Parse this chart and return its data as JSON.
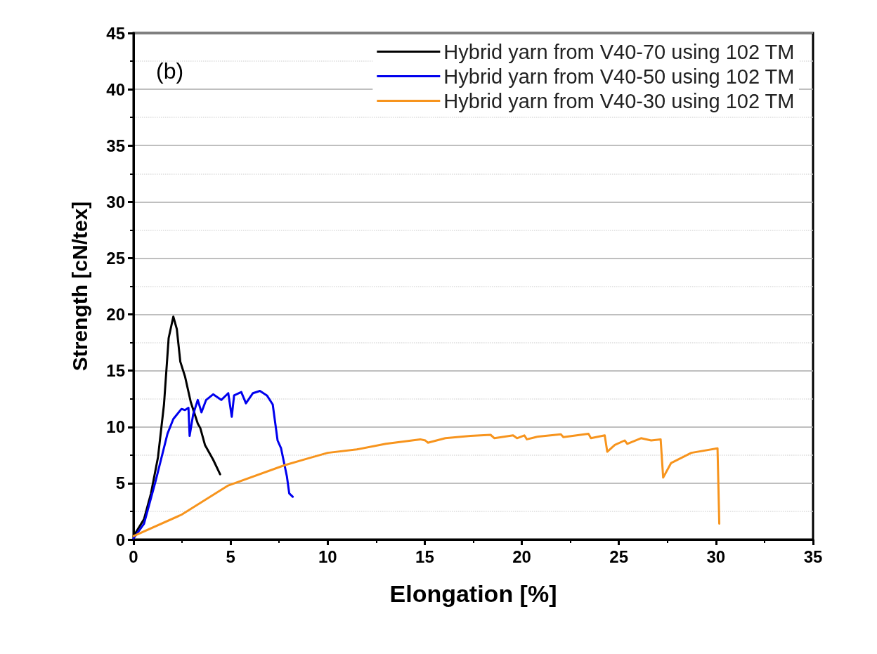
{
  "chart_data": {
    "type": "line",
    "xlabel": "Elongation [%]",
    "ylabel": "Strength [cN/tex]",
    "annotations": [
      "(b)"
    ],
    "xlim": [
      0,
      35
    ],
    "xticks": [
      0,
      5,
      10,
      15,
      20,
      25,
      30,
      35
    ],
    "ylim": [
      0,
      45
    ],
    "yticks": [
      0,
      5,
      10,
      15,
      20,
      25,
      30,
      35,
      40,
      45
    ],
    "grid": "y",
    "legend": "top right",
    "marker": "none",
    "line_style": "solid",
    "series": [
      {
        "name": "Hybrid yarn from V40-70 using 102 TM",
        "color": "#000000",
        "x": [
          0,
          0.54,
          0.9,
          1.26,
          1.57,
          1.81,
          2.05,
          2.23,
          2.41,
          2.65,
          2.95,
          3.31,
          3.44,
          3.68,
          4.1,
          4.46
        ],
        "values": [
          0.3,
          1.8,
          4.1,
          7.3,
          12.0,
          17.9,
          19.8,
          18.7,
          15.8,
          14.5,
          12.2,
          10.3,
          9.9,
          8.4,
          7.1,
          5.8
        ]
      },
      {
        "name": "Hybrid yarn from V40-50 using 102 TM",
        "color": "#0000ee",
        "x": [
          0,
          0.54,
          1.14,
          1.75,
          2.05,
          2.47,
          2.65,
          2.83,
          2.89,
          3.07,
          3.31,
          3.5,
          3.74,
          4.1,
          4.52,
          4.88,
          5.06,
          5.18,
          5.55,
          5.79,
          6.15,
          6.51,
          6.87,
          7.17,
          7.42,
          7.6,
          7.9,
          8.02,
          8.2
        ],
        "values": [
          0.1,
          1.4,
          5.2,
          9.4,
          10.7,
          11.6,
          11.5,
          11.7,
          9.2,
          11.1,
          12.4,
          11.3,
          12.4,
          12.9,
          12.4,
          13.0,
          10.9,
          12.8,
          13.1,
          12.1,
          13.0,
          13.2,
          12.8,
          12.0,
          8.8,
          8.1,
          5.6,
          4.1,
          3.8
        ]
      },
      {
        "name": "Hybrid yarn from V40-30 using 102 TM",
        "color": "#f7941d",
        "x": [
          0,
          2.47,
          4.88,
          7.78,
          8.98,
          10,
          11.5,
          13,
          14.77,
          15.03,
          15.16,
          16.06,
          17.36,
          18.39,
          18.59,
          19.55,
          19.75,
          20.13,
          20.26,
          20.85,
          22.01,
          22.14,
          23.43,
          23.56,
          24.27,
          24.4,
          24.79,
          25.3,
          25.43,
          26.14,
          26.66,
          27.15,
          27.28,
          27.69,
          28.73,
          30.08,
          30.17
        ],
        "values": [
          0.3,
          2.2,
          4.8,
          6.6,
          7.2,
          7.7,
          8.0,
          8.5,
          8.9,
          8.8,
          8.6,
          9.0,
          9.2,
          9.3,
          9.0,
          9.25,
          9.0,
          9.25,
          8.9,
          9.15,
          9.35,
          9.1,
          9.4,
          9.0,
          9.25,
          7.8,
          8.4,
          8.8,
          8.5,
          9.0,
          8.8,
          8.9,
          5.5,
          6.8,
          7.7,
          8.1,
          1.4
        ]
      }
    ]
  }
}
